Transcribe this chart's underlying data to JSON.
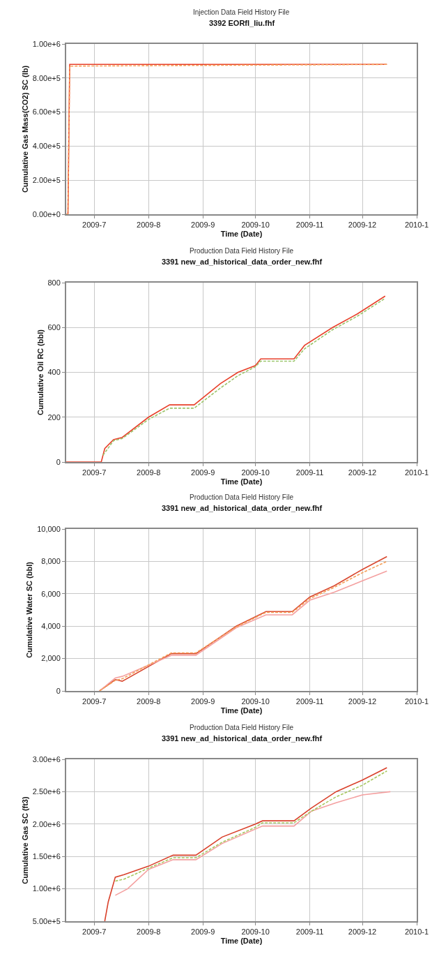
{
  "chart_data": [
    {
      "type": "line",
      "title": "3392 EORfl_liu.fhf",
      "subtitle": "Injection Data Field History File",
      "xlabel": "Time (Date)",
      "ylabel": "Cumulative Gas Mass(CO2) SC (lb)",
      "xlim": [
        "2009-06-15",
        "2010-01-01"
      ],
      "xticks": [
        {
          "value": "2009-07-01",
          "label": "2009-7"
        },
        {
          "value": "2009-08-01",
          "label": "2009-8"
        },
        {
          "value": "2009-09-01",
          "label": "2009-9"
        },
        {
          "value": "2009-10-01",
          "label": "2009-10"
        },
        {
          "value": "2009-11-01",
          "label": "2009-11"
        },
        {
          "value": "2009-12-01",
          "label": "2009-12"
        },
        {
          "value": "2010-01-01",
          "label": "2010-1"
        }
      ],
      "ylim": [
        0,
        1000000
      ],
      "yticks": [
        {
          "value": 0,
          "label": "0.00e+0"
        },
        {
          "value": 200000,
          "label": "2.00e+5"
        },
        {
          "value": 400000,
          "label": "4.00e+5"
        },
        {
          "value": 600000,
          "label": "6.00e+5"
        },
        {
          "value": 800000,
          "label": "8.00e+5"
        },
        {
          "value": 1000000,
          "label": "1.00e+6"
        }
      ],
      "grid": true,
      "series": [
        {
          "color": "#e8402a",
          "line_style": "solid",
          "x": [
            "2009-06-15",
            "2009-06-16",
            "2009-06-17",
            "2009-12-15"
          ],
          "values": [
            0,
            0,
            880000,
            880000
          ]
        },
        {
          "color": "#f5a05a",
          "line_style": "dashed",
          "x": [
            "2009-06-15",
            "2009-06-16",
            "2009-06-17",
            "2009-12-15"
          ],
          "values": [
            0,
            0,
            870000,
            880000
          ]
        }
      ]
    },
    {
      "type": "line",
      "title": "3391 new_ad_historical_data_order_new.fhf",
      "subtitle": "Production Data Field History File",
      "xlabel": "Time (Date)",
      "ylabel": "Cumulative Oil RC (bbl)",
      "xlim": [
        "2009-06-15",
        "2010-01-01"
      ],
      "xticks": [
        {
          "value": "2009-07-01",
          "label": "2009-7"
        },
        {
          "value": "2009-08-01",
          "label": "2009-8"
        },
        {
          "value": "2009-09-01",
          "label": "2009-9"
        },
        {
          "value": "2009-10-01",
          "label": "2009-10"
        },
        {
          "value": "2009-11-01",
          "label": "2009-11"
        },
        {
          "value": "2009-12-01",
          "label": "2009-12"
        },
        {
          "value": "2010-01-01",
          "label": "2010-1"
        }
      ],
      "ylim": [
        0,
        800
      ],
      "yticks": [
        0,
        200,
        400,
        600,
        800
      ],
      "grid": true,
      "series": [
        {
          "color": "#e8402a",
          "line_style": "solid",
          "x": [
            "2009-06-15",
            "2009-07-05",
            "2009-07-07",
            "2009-07-12",
            "2009-07-17",
            "2009-08-01",
            "2009-08-13",
            "2009-08-27",
            "2009-09-11",
            "2009-09-21",
            "2009-10-01",
            "2009-10-04",
            "2009-10-23",
            "2009-10-29",
            "2009-11-14",
            "2009-11-28",
            "2009-12-14"
          ],
          "values": [
            0,
            0,
            60,
            100,
            110,
            200,
            255,
            255,
            350,
            400,
            430,
            460,
            460,
            520,
            600,
            660,
            740
          ]
        },
        {
          "color": "#9cc46a",
          "line_style": "dashed",
          "x": [
            "2009-07-06",
            "2009-07-12",
            "2009-07-17",
            "2009-08-01",
            "2009-08-13",
            "2009-08-27",
            "2009-09-11",
            "2009-09-21",
            "2009-10-01",
            "2009-10-04",
            "2009-10-23",
            "2009-10-29",
            "2009-11-14",
            "2009-11-28",
            "2009-12-14"
          ],
          "values": [
            30,
            95,
            105,
            190,
            240,
            240,
            330,
            385,
            425,
            450,
            450,
            505,
            590,
            650,
            730
          ]
        }
      ]
    },
    {
      "type": "line",
      "title": "3391 new_ad_historical_data_order_new.fhf",
      "subtitle": "Production Data Field History File",
      "xlabel": "Time (Date)",
      "ylabel": "Cumulative Water SC (bbl)",
      "xlim": [
        "2009-06-15",
        "2010-01-01"
      ],
      "xticks": [
        {
          "value": "2009-07-01",
          "label": "2009-7"
        },
        {
          "value": "2009-08-01",
          "label": "2009-8"
        },
        {
          "value": "2009-09-01",
          "label": "2009-9"
        },
        {
          "value": "2009-10-01",
          "label": "2009-10"
        },
        {
          "value": "2009-11-01",
          "label": "2009-11"
        },
        {
          "value": "2009-12-01",
          "label": "2009-12"
        },
        {
          "value": "2010-01-01",
          "label": "2010-1"
        }
      ],
      "ylim": [
        0,
        10000
      ],
      "yticks": [
        {
          "value": 0,
          "label": "0"
        },
        {
          "value": 2000,
          "label": "2,000"
        },
        {
          "value": 4000,
          "label": "4,000"
        },
        {
          "value": 6000,
          "label": "6,000"
        },
        {
          "value": 8000,
          "label": "8,000"
        },
        {
          "value": 10000,
          "label": "10,000"
        }
      ],
      "grid": true,
      "series": [
        {
          "color": "#d9482f",
          "line_style": "solid",
          "x": [
            "2009-07-04",
            "2009-07-13",
            "2009-07-17",
            "2009-08-14",
            "2009-08-28",
            "2009-09-20",
            "2009-10-07",
            "2009-10-22",
            "2009-11-01",
            "2009-11-15",
            "2009-12-01",
            "2009-12-15"
          ],
          "values": [
            0,
            700,
            600,
            2300,
            2300,
            4000,
            4900,
            4900,
            5800,
            6500,
            7500,
            8300
          ]
        },
        {
          "color": "#f4a0a0",
          "line_style": "solid",
          "x": [
            "2009-07-04",
            "2009-07-13",
            "2009-07-17",
            "2009-08-14",
            "2009-08-28",
            "2009-09-20",
            "2009-10-07",
            "2009-10-22",
            "2009-11-01",
            "2009-11-15",
            "2009-12-01",
            "2009-12-15"
          ],
          "values": [
            0,
            800,
            900,
            2200,
            2200,
            3900,
            4700,
            4700,
            5600,
            6100,
            6800,
            7400
          ]
        },
        {
          "color": "#f5a05a",
          "line_style": "dashed",
          "x": [
            "2009-07-04",
            "2009-07-13",
            "2009-07-17",
            "2009-08-14",
            "2009-08-28",
            "2009-09-20",
            "2009-10-07",
            "2009-10-22",
            "2009-11-01",
            "2009-11-15",
            "2009-12-01",
            "2009-12-15"
          ],
          "values": [
            0,
            650,
            750,
            2350,
            2350,
            3950,
            4850,
            4850,
            5700,
            6400,
            7300,
            8000
          ]
        }
      ]
    },
    {
      "type": "line",
      "title": "3391 new_ad_historical_data_order_new.fhf",
      "subtitle": "Production Data Field History File",
      "xlabel": "Time (Date)",
      "ylabel": "Cumulative Gas SC (ft3)",
      "xlim": [
        "2009-06-15",
        "2010-01-01"
      ],
      "xticks": [
        {
          "value": "2009-07-01",
          "label": "2009-7"
        },
        {
          "value": "2009-08-01",
          "label": "2009-8"
        },
        {
          "value": "2009-09-01",
          "label": "2009-9"
        },
        {
          "value": "2009-10-01",
          "label": "2009-10"
        },
        {
          "value": "2009-11-01",
          "label": "2009-11"
        },
        {
          "value": "2009-12-01",
          "label": "2009-12"
        },
        {
          "value": "2010-01-01",
          "label": "2010-1"
        }
      ],
      "ylim": [
        500000,
        3000000
      ],
      "yticks": [
        {
          "value": 500000,
          "label": "5.00e+5"
        },
        {
          "value": 1000000,
          "label": "1.00e+6"
        },
        {
          "value": 1500000,
          "label": "1.50e+6"
        },
        {
          "value": 2000000,
          "label": "2.00e+6"
        },
        {
          "value": 2500000,
          "label": "2.50e+6"
        },
        {
          "value": 3000000,
          "label": "3.00e+6"
        }
      ],
      "grid": true,
      "series": [
        {
          "color": "#d9402a",
          "line_style": "solid",
          "x": [
            "2009-07-07",
            "2009-07-09",
            "2009-07-13",
            "2009-07-18",
            "2009-08-01",
            "2009-08-15",
            "2009-08-28",
            "2009-09-12",
            "2009-10-01",
            "2009-10-05",
            "2009-10-23",
            "2009-11-02",
            "2009-11-16",
            "2009-12-01",
            "2009-12-15"
          ],
          "values": [
            500000,
            800000,
            1180000,
            1220000,
            1350000,
            1520000,
            1520000,
            1800000,
            2000000,
            2050000,
            2050000,
            2250000,
            2500000,
            2680000,
            2870000
          ]
        },
        {
          "color": "#f4a0a0",
          "line_style": "solid",
          "x": [
            "2009-07-13",
            "2009-07-20",
            "2009-08-01",
            "2009-08-15",
            "2009-08-28",
            "2009-09-12",
            "2009-10-05",
            "2009-10-23",
            "2009-11-02",
            "2009-11-16",
            "2009-12-01",
            "2009-12-17"
          ],
          "values": [
            900000,
            1000000,
            1300000,
            1450000,
            1450000,
            1700000,
            1970000,
            1970000,
            2200000,
            2330000,
            2450000,
            2500000
          ]
        },
        {
          "color": "#a8c860",
          "line_style": "dashed",
          "x": [
            "2009-07-13",
            "2009-07-18",
            "2009-08-01",
            "2009-08-15",
            "2009-08-28",
            "2009-09-12",
            "2009-10-01",
            "2009-10-05",
            "2009-10-23",
            "2009-11-02",
            "2009-11-16",
            "2009-12-01",
            "2009-12-15"
          ],
          "values": [
            1120000,
            1150000,
            1320000,
            1480000,
            1480000,
            1720000,
            1950000,
            2020000,
            2020000,
            2200000,
            2420000,
            2600000,
            2820000
          ]
        }
      ]
    }
  ]
}
